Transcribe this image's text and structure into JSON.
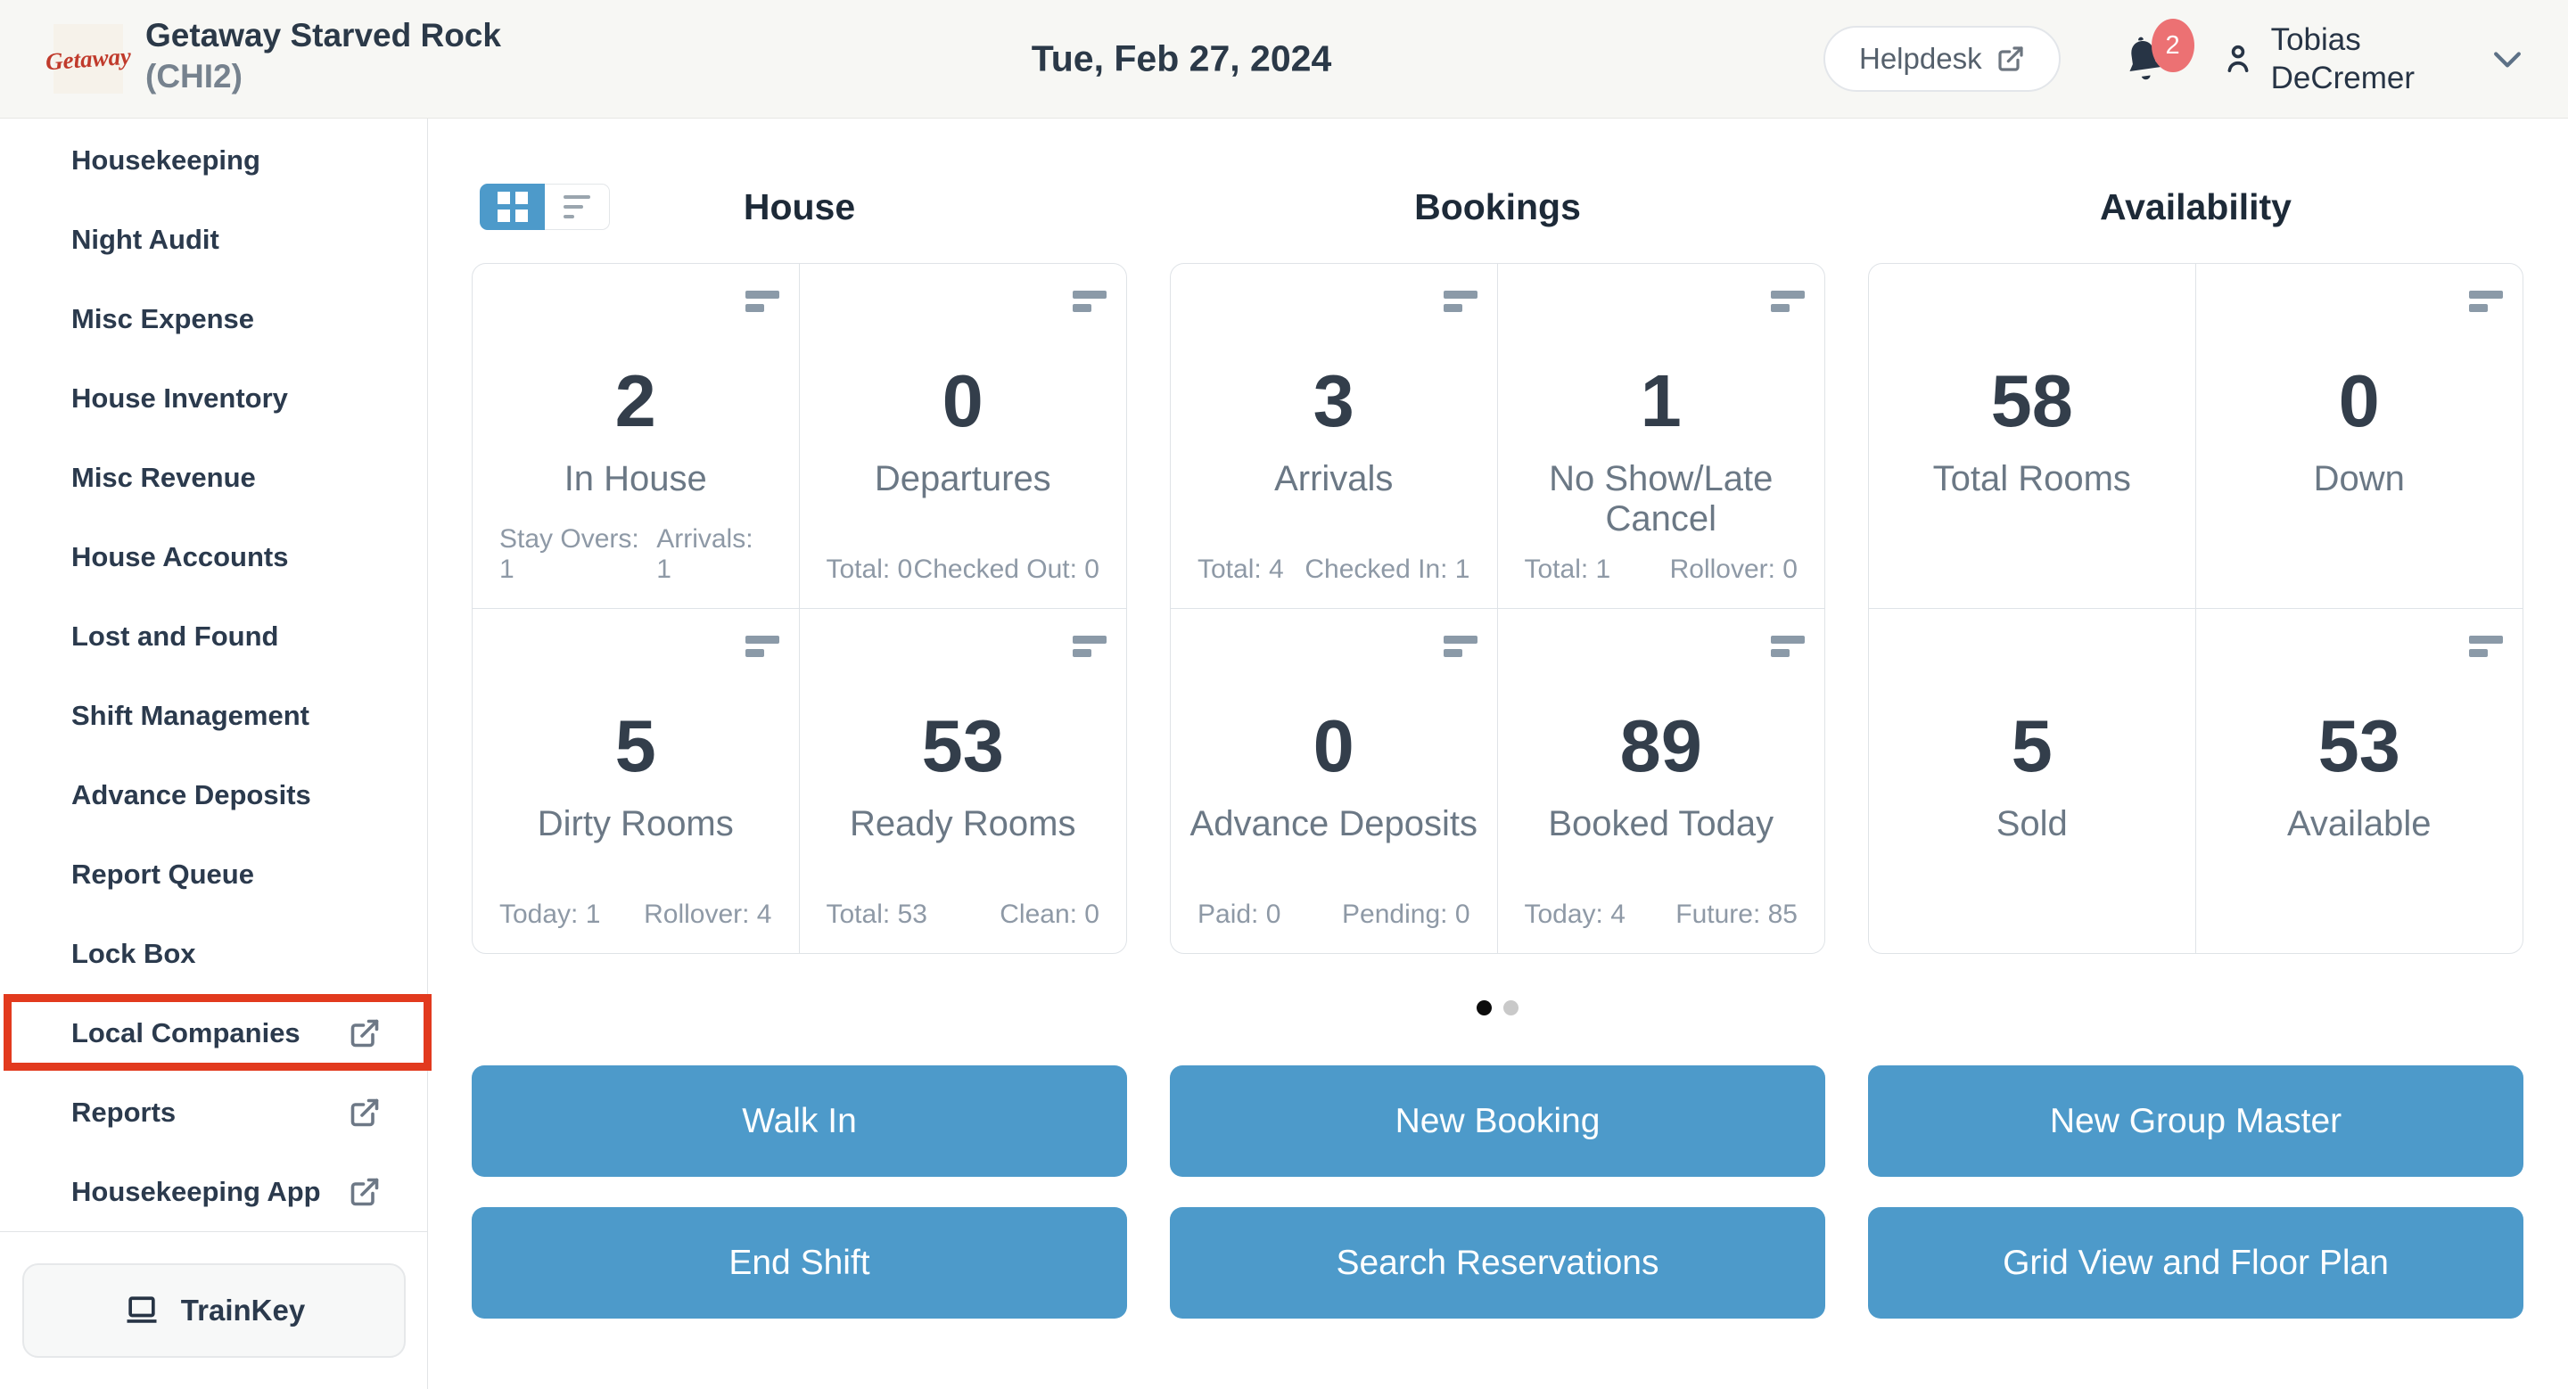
{
  "header": {
    "logo_text": "Getaway",
    "property_name": "Getaway Starved Rock",
    "property_code": "(CHI2)",
    "date": "Tue, Feb 27, 2024",
    "helpdesk_label": "Helpdesk",
    "notification_count": "2",
    "user_first": "Tobias",
    "user_last": "DeCremer"
  },
  "sidebar": {
    "items": [
      {
        "label": "Housekeeping",
        "external": false,
        "highlighted": false
      },
      {
        "label": "Night Audit",
        "external": false,
        "highlighted": false
      },
      {
        "label": "Misc Expense",
        "external": false,
        "highlighted": false
      },
      {
        "label": "House Inventory",
        "external": false,
        "highlighted": false
      },
      {
        "label": "Misc Revenue",
        "external": false,
        "highlighted": false
      },
      {
        "label": "House Accounts",
        "external": false,
        "highlighted": false
      },
      {
        "label": "Lost and Found",
        "external": false,
        "highlighted": false
      },
      {
        "label": "Shift Management",
        "external": false,
        "highlighted": false
      },
      {
        "label": "Advance Deposits",
        "external": false,
        "highlighted": false
      },
      {
        "label": "Report Queue",
        "external": false,
        "highlighted": false
      },
      {
        "label": "Lock Box",
        "external": false,
        "highlighted": false
      },
      {
        "label": "Local Companies",
        "external": true,
        "highlighted": true
      },
      {
        "label": "Reports",
        "external": true,
        "highlighted": false
      },
      {
        "label": "Housekeeping App",
        "external": true,
        "highlighted": false
      }
    ],
    "trainkey_label": "TrainKey"
  },
  "view_toggle": {
    "active": "grid"
  },
  "dashboard": {
    "sections": [
      {
        "title": "House",
        "cards": [
          {
            "value": "2",
            "label": "In House",
            "icon": true,
            "stats": [
              "Stay Overs: 1",
              "Arrivals: 1"
            ]
          },
          {
            "value": "0",
            "label": "Departures",
            "icon": true,
            "stats": [
              "Total: 0",
              "Checked Out: 0"
            ]
          },
          {
            "value": "5",
            "label": "Dirty Rooms",
            "icon": true,
            "stats": [
              "Today: 1",
              "Rollover: 4"
            ]
          },
          {
            "value": "53",
            "label": "Ready Rooms",
            "icon": true,
            "stats": [
              "Total: 53",
              "Clean: 0"
            ]
          }
        ]
      },
      {
        "title": "Bookings",
        "cards": [
          {
            "value": "3",
            "label": "Arrivals",
            "icon": true,
            "stats": [
              "Total: 4",
              "Checked In: 1"
            ]
          },
          {
            "value": "1",
            "label": "No Show/Late Cancel",
            "icon": true,
            "stats": [
              "Total: 1",
              "Rollover: 0"
            ]
          },
          {
            "value": "0",
            "label": "Advance Deposits",
            "icon": true,
            "stats": [
              "Paid: 0",
              "Pending: 0"
            ]
          },
          {
            "value": "89",
            "label": "Booked Today",
            "icon": true,
            "stats": [
              "Today: 4",
              "Future: 85"
            ]
          }
        ]
      },
      {
        "title": "Availability",
        "cards": [
          {
            "value": "58",
            "label": "Total Rooms",
            "icon": false,
            "stats": []
          },
          {
            "value": "0",
            "label": "Down",
            "icon": true,
            "stats": []
          },
          {
            "value": "5",
            "label": "Sold",
            "icon": false,
            "stats": []
          },
          {
            "value": "53",
            "label": "Available",
            "icon": true,
            "stats": []
          }
        ]
      }
    ],
    "pagination": {
      "dots": 2,
      "active_index": 0
    },
    "action_buttons": [
      {
        "label": "Walk In"
      },
      {
        "label": "New Booking"
      },
      {
        "label": "New Group Master"
      },
      {
        "label": "End Shift"
      },
      {
        "label": "Search Reservations"
      },
      {
        "label": "Grid View and Floor Plan"
      }
    ]
  },
  "icons": [
    "getaway-logo",
    "external-link-icon",
    "bell-icon",
    "person-icon",
    "chevron-down-icon",
    "grid-view-icon",
    "list-view-icon",
    "stats-bars-icon",
    "laptop-icon"
  ],
  "colors": {
    "accent_blue": "#4d9aca",
    "annotation_red": "#e23a1e",
    "badge_red": "#ec7173",
    "logo_red": "#c03a2b",
    "header_bg": "#f7f7f4",
    "text_dark": "#2b3948",
    "text_muted": "#6b7885",
    "active_dot": "#0c0c0c"
  }
}
